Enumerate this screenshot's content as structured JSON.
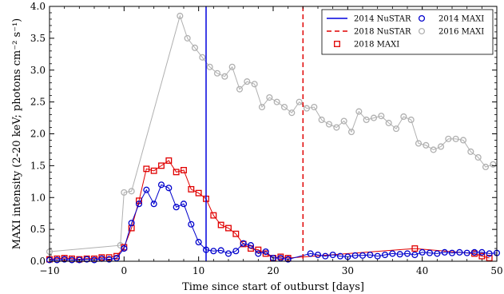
{
  "chart_data": {
    "type": "line",
    "xlabel": "Time since start of outburst [days]",
    "ylabel": "MAXI intensity (2-20 keV; photons cm⁻² s⁻¹)",
    "xlim": [
      -10,
      50
    ],
    "ylim": [
      0,
      4
    ],
    "xticks": [
      -10,
      0,
      10,
      20,
      30,
      40,
      50
    ],
    "yticks": [
      0.0,
      0.5,
      1.0,
      1.5,
      2.0,
      2.5,
      3.0,
      3.5,
      4.0
    ],
    "xtick_labels": [
      "−10",
      "0",
      "10",
      "20",
      "30",
      "40",
      "50"
    ],
    "ytick_labels": [
      "0.0",
      "0.5",
      "1.0",
      "1.5",
      "2.0",
      "2.5",
      "3.0",
      "3.5",
      "4.0"
    ],
    "legend_position": "top-right",
    "vlines": [
      {
        "name": "2014 NuSTAR",
        "x": 11.0,
        "color": "#0000dd",
        "style": "solid"
      },
      {
        "name": "2018 NuSTAR",
        "x": 24.0,
        "color": "#e00000",
        "style": "dashed"
      }
    ],
    "series": [
      {
        "name": "2014 MAXI",
        "color": "#0000cc",
        "marker": "circle",
        "x": [
          -10,
          -9,
          -8,
          -7,
          -6,
          -5,
          -4,
          -3,
          -2,
          -1,
          0,
          1,
          2,
          3,
          4,
          5,
          6,
          7,
          8,
          9,
          10,
          11,
          12,
          13,
          14,
          15,
          16,
          17,
          18,
          19,
          20,
          21,
          22,
          25,
          26,
          27,
          28,
          29,
          30,
          31,
          32,
          33,
          34,
          35,
          36,
          37,
          38,
          39,
          40,
          41,
          42,
          43,
          44,
          45,
          46,
          47,
          48,
          49,
          50
        ],
        "y": [
          0.02,
          0.02,
          0.03,
          0.02,
          0.02,
          0.03,
          0.02,
          0.04,
          0.03,
          0.05,
          0.2,
          0.6,
          0.9,
          1.12,
          0.9,
          1.2,
          1.15,
          0.85,
          0.9,
          0.58,
          0.3,
          0.18,
          0.16,
          0.17,
          0.12,
          0.16,
          0.28,
          0.25,
          0.12,
          0.15,
          0.05,
          0.05,
          0.03,
          0.12,
          0.1,
          0.08,
          0.1,
          0.08,
          0.07,
          0.09,
          0.09,
          0.1,
          0.08,
          0.1,
          0.12,
          0.11,
          0.12,
          0.1,
          0.14,
          0.13,
          0.12,
          0.14,
          0.13,
          0.14,
          0.13,
          0.14,
          0.14,
          0.12,
          0.13
        ]
      },
      {
        "name": "2016 MAXI",
        "color": "#b0b0b0",
        "marker": "circle",
        "x": [
          -10,
          -0.5,
          0,
          1,
          7.5,
          8.5,
          9.5,
          10.5,
          11.5,
          12.5,
          13.5,
          14.5,
          15.5,
          16.5,
          17.5,
          18.5,
          19.5,
          20.5,
          21.5,
          22.5,
          23.5,
          24.5,
          25.5,
          26.5,
          27.5,
          28.5,
          29.5,
          30.5,
          31.5,
          32.5,
          33.5,
          34.5,
          35.5,
          36.5,
          37.5,
          38.5,
          39.5,
          40.5,
          41.5,
          42.5,
          43.5,
          44.5,
          45.5,
          46.5,
          47.5,
          48.5,
          49.5
        ],
        "y": [
          0.15,
          0.25,
          1.08,
          1.1,
          3.85,
          3.5,
          3.35,
          3.2,
          3.05,
          2.95,
          2.9,
          3.05,
          2.7,
          2.82,
          2.78,
          2.42,
          2.57,
          2.5,
          2.42,
          2.33,
          2.5,
          2.4,
          2.42,
          2.22,
          2.15,
          2.1,
          2.2,
          2.03,
          2.35,
          2.22,
          2.25,
          2.28,
          2.17,
          2.08,
          2.27,
          2.22,
          1.85,
          1.82,
          1.75,
          1.8,
          1.92,
          1.92,
          1.9,
          1.72,
          1.63,
          1.48,
          1.52
        ]
      },
      {
        "name": "2018 MAXI",
        "color": "#e00000",
        "marker": "square",
        "x": [
          -10,
          -9,
          -8,
          -7,
          -6,
          -5,
          -4,
          -3,
          -2,
          -1,
          0,
          1,
          2,
          3,
          4,
          5,
          6,
          7,
          8,
          9,
          10,
          11,
          12,
          13,
          14,
          15,
          16,
          17,
          18,
          19,
          20,
          21,
          22,
          39,
          47,
          48,
          49
        ],
        "y": [
          0.03,
          0.04,
          0.05,
          0.04,
          0.03,
          0.04,
          0.04,
          0.06,
          0.06,
          0.08,
          0.22,
          0.52,
          0.95,
          1.45,
          1.42,
          1.5,
          1.58,
          1.4,
          1.43,
          1.13,
          1.07,
          0.98,
          0.72,
          0.57,
          0.52,
          0.43,
          0.27,
          0.2,
          0.18,
          0.12,
          0.05,
          0.07,
          0.05,
          0.2,
          0.12,
          0.08,
          0.05
        ]
      }
    ]
  }
}
